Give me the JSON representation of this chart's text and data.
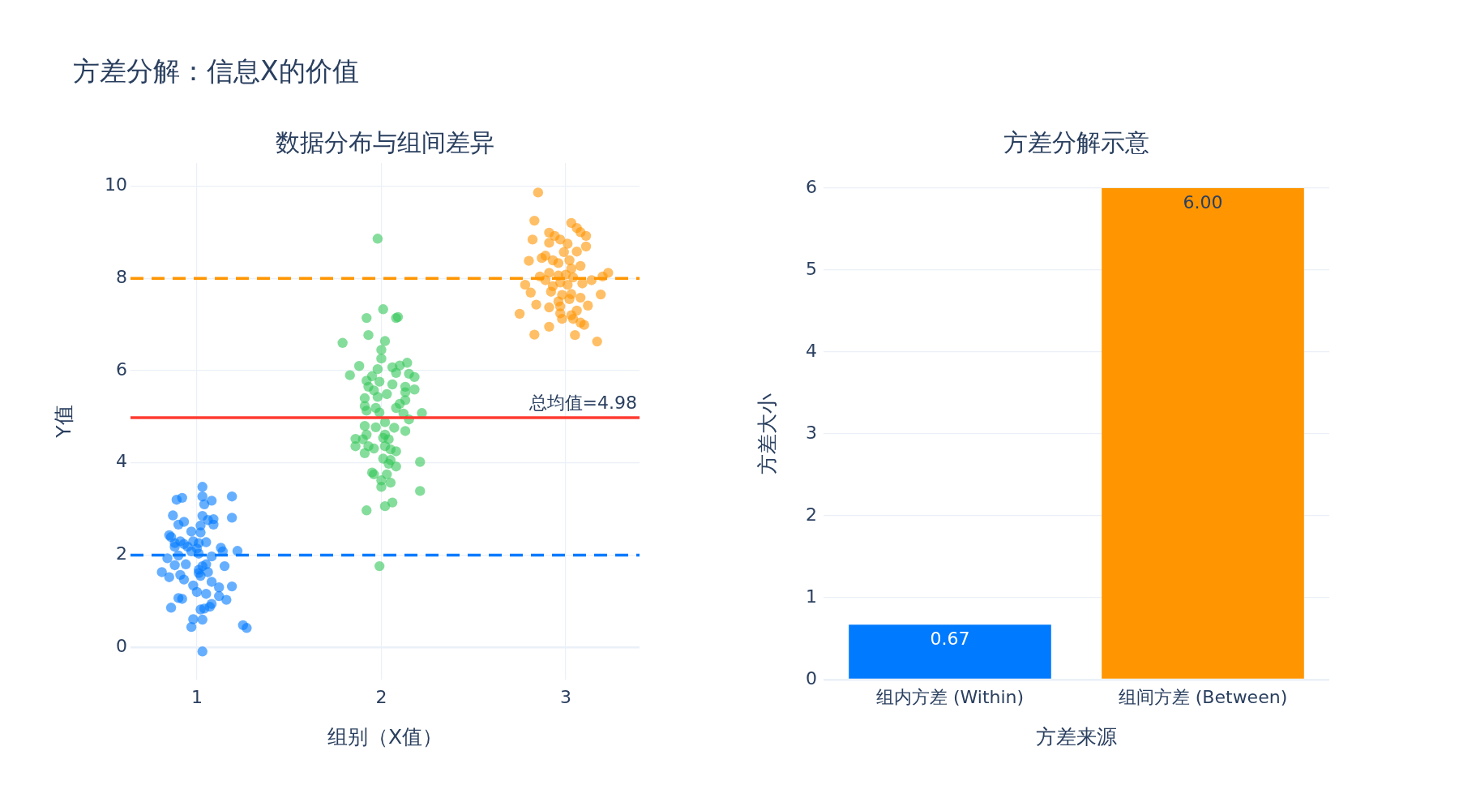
{
  "chart_data": [
    {
      "type": "scatter",
      "title": "方差分解：信息X的价值",
      "subtitle": "数据分布与组间差异",
      "xlabel": "组别（X值）",
      "ylabel": "Y值",
      "xlim": [
        0.64,
        3.4
      ],
      "ylim": [
        -0.7,
        10.5
      ],
      "xticks": [
        1,
        2,
        3
      ],
      "yticks": [
        0,
        2,
        4,
        6,
        8,
        10
      ],
      "grid": true,
      "marker": "circle",
      "series": [
        {
          "color": "#007aff",
          "x": [
            1.03,
            1.19,
            1.03,
            0.89,
            0.92,
            1.08,
            1.04,
            0.87,
            1.19,
            1.03,
            1.06,
            1.09,
            1.09,
            0.93,
            0.9,
            1.02,
            0.97,
            1.02,
            0.85,
            0.86,
            0.91,
            0.88,
            0.93,
            0.98,
            1.01,
            1.05,
            0.95,
            0.88,
            1.13,
            1.14,
            1.22,
            1.0,
            0.97,
            1.01,
            1.08,
            0.84,
            0.9,
            0.94,
            0.88,
            0.81,
            0.85,
            0.91,
            0.93,
            1.01,
            1.03,
            1.05,
            1.06,
            1.02,
            1.01,
            1.08,
            1.15,
            0.98,
            1.12,
            1.19,
            1.0,
            1.05,
            1.12,
            1.16,
            0.9,
            0.92,
            1.08,
            1.07,
            1.02,
            1.04,
            0.86,
            0.98,
            1.03,
            0.97,
            1.25,
            1.27,
            1.03
          ],
          "values": [
            3.48,
            3.27,
            3.27,
            3.2,
            3.24,
            3.18,
            3.1,
            2.86,
            2.81,
            2.85,
            2.76,
            2.78,
            2.66,
            2.72,
            2.66,
            2.64,
            2.51,
            2.49,
            2.43,
            2.39,
            2.3,
            2.26,
            2.24,
            2.3,
            2.26,
            2.28,
            2.18,
            2.18,
            2.16,
            2.08,
            2.09,
            2.14,
            2.08,
            2.03,
            1.97,
            1.93,
            1.99,
            1.8,
            1.78,
            1.63,
            1.52,
            1.57,
            1.47,
            1.68,
            1.76,
            1.8,
            1.63,
            1.55,
            1.61,
            1.42,
            1.76,
            1.34,
            1.3,
            1.32,
            1.2,
            1.16,
            1.11,
            1.03,
            1.07,
            1.05,
            0.94,
            0.88,
            0.82,
            0.84,
            0.86,
            0.61,
            0.6,
            0.44,
            0.48,
            0.42,
            -0.09
          ]
        },
        {
          "color": "#34c759",
          "x": [
            1.98,
            2.01,
            1.92,
            2.08,
            2.09,
            1.93,
            1.79,
            2.02,
            2.0,
            2.0,
            1.88,
            1.98,
            2.06,
            2.1,
            2.14,
            1.83,
            2.08,
            2.15,
            2.18,
            1.95,
            1.92,
            1.99,
            2.06,
            2.13,
            2.18,
            1.93,
            1.96,
            2.13,
            2.03,
            1.98,
            1.91,
            2.13,
            2.1,
            2.08,
            1.91,
            1.97,
            1.92,
            1.99,
            2.12,
            2.22,
            2.15,
            2.02,
            1.91,
            1.97,
            2.07,
            2.13,
            2.02,
            1.92,
            1.86,
            1.9,
            2.01,
            2.04,
            1.86,
            1.93,
            1.96,
            2.02,
            2.05,
            2.08,
            1.91,
            2.01,
            2.05,
            2.04,
            2.21,
            2.08,
            1.95,
            1.96,
            2.03,
            2.0,
            2.05,
            2.0,
            2.21,
            2.06,
            2.02,
            1.92,
            1.99
          ],
          "values": [
            8.86,
            7.33,
            7.14,
            7.14,
            7.16,
            6.77,
            6.6,
            6.64,
            6.45,
            6.26,
            6.1,
            6.03,
            6.07,
            6.11,
            6.17,
            5.9,
            5.95,
            5.93,
            5.86,
            5.88,
            5.78,
            5.76,
            5.7,
            5.65,
            5.59,
            5.65,
            5.57,
            5.53,
            5.49,
            5.43,
            5.4,
            5.36,
            5.28,
            5.19,
            5.23,
            5.19,
            5.13,
            5.09,
            5.07,
            5.08,
            4.94,
            4.88,
            4.8,
            4.77,
            4.76,
            4.69,
            4.61,
            4.61,
            4.52,
            4.51,
            4.54,
            4.51,
            4.36,
            4.36,
            4.31,
            4.36,
            4.29,
            4.25,
            4.21,
            4.09,
            4.06,
            3.98,
            4.02,
            3.92,
            3.79,
            3.75,
            3.75,
            3.62,
            3.57,
            3.48,
            3.39,
            3.14,
            3.06,
            2.97,
            1.76
          ]
        },
        {
          "color": "#ff9500",
          "x": [
            2.85,
            2.83,
            3.03,
            3.06,
            3.08,
            2.91,
            2.94,
            3.11,
            2.82,
            2.97,
            2.91,
            3.01,
            3.11,
            2.99,
            3.06,
            2.89,
            2.8,
            2.87,
            2.93,
            3.02,
            2.96,
            3.08,
            3.03,
            2.91,
            3.23,
            2.86,
            2.96,
            3.0,
            3.04,
            2.89,
            2.97,
            3.14,
            3.2,
            2.78,
            2.93,
            3.01,
            3.09,
            2.81,
            2.92,
            2.98,
            3.03,
            3.19,
            2.96,
            3.02,
            3.08,
            2.84,
            2.91,
            2.97,
            3.12,
            3.06,
            2.97,
            2.75,
            3.03,
            2.98,
            3.04,
            3.08,
            3.1,
            2.91,
            2.83,
            3.05,
            3.17
          ],
          "values": [
            9.86,
            9.25,
            9.2,
            9.09,
            9.0,
            8.99,
            8.92,
            8.92,
            8.84,
            8.84,
            8.77,
            8.75,
            8.69,
            8.57,
            8.58,
            8.49,
            8.38,
            8.44,
            8.39,
            8.39,
            8.33,
            8.27,
            8.21,
            8.12,
            8.12,
            8.04,
            8.06,
            8.08,
            8.02,
            7.96,
            7.91,
            7.96,
            8.04,
            7.86,
            7.83,
            7.86,
            7.89,
            7.69,
            7.71,
            7.64,
            7.66,
            7.65,
            7.5,
            7.55,
            7.58,
            7.43,
            7.37,
            7.39,
            7.41,
            7.3,
            7.24,
            7.23,
            7.2,
            7.12,
            7.12,
            7.04,
            6.99,
            6.95,
            6.78,
            6.77,
            6.63
          ]
        }
      ],
      "ref_lines": [
        {
          "axis": "y",
          "value": 2,
          "color": "#007aff",
          "line_style": "dashed"
        },
        {
          "axis": "y",
          "value": 8,
          "color": "#ff9500",
          "line_style": "dashed"
        },
        {
          "axis": "y",
          "value": 4.98,
          "label": "总均值=4.98",
          "color": "#ff3b30",
          "line_style": "solid"
        }
      ]
    },
    {
      "type": "bar",
      "title": "方差分解示意",
      "xlabel": "方差来源",
      "ylabel": "方差大小",
      "categories": [
        "组内方差 (Within)",
        "组间方差 (Between)"
      ],
      "values": [
        0.67,
        6.0
      ],
      "colors": [
        "#007aff",
        "#ff9500"
      ],
      "value_labels": [
        "0.67",
        "6.00"
      ],
      "ylim": [
        0,
        6
      ],
      "yticks": [
        0,
        1,
        2,
        3,
        4,
        5,
        6
      ],
      "grid": "y"
    }
  ]
}
